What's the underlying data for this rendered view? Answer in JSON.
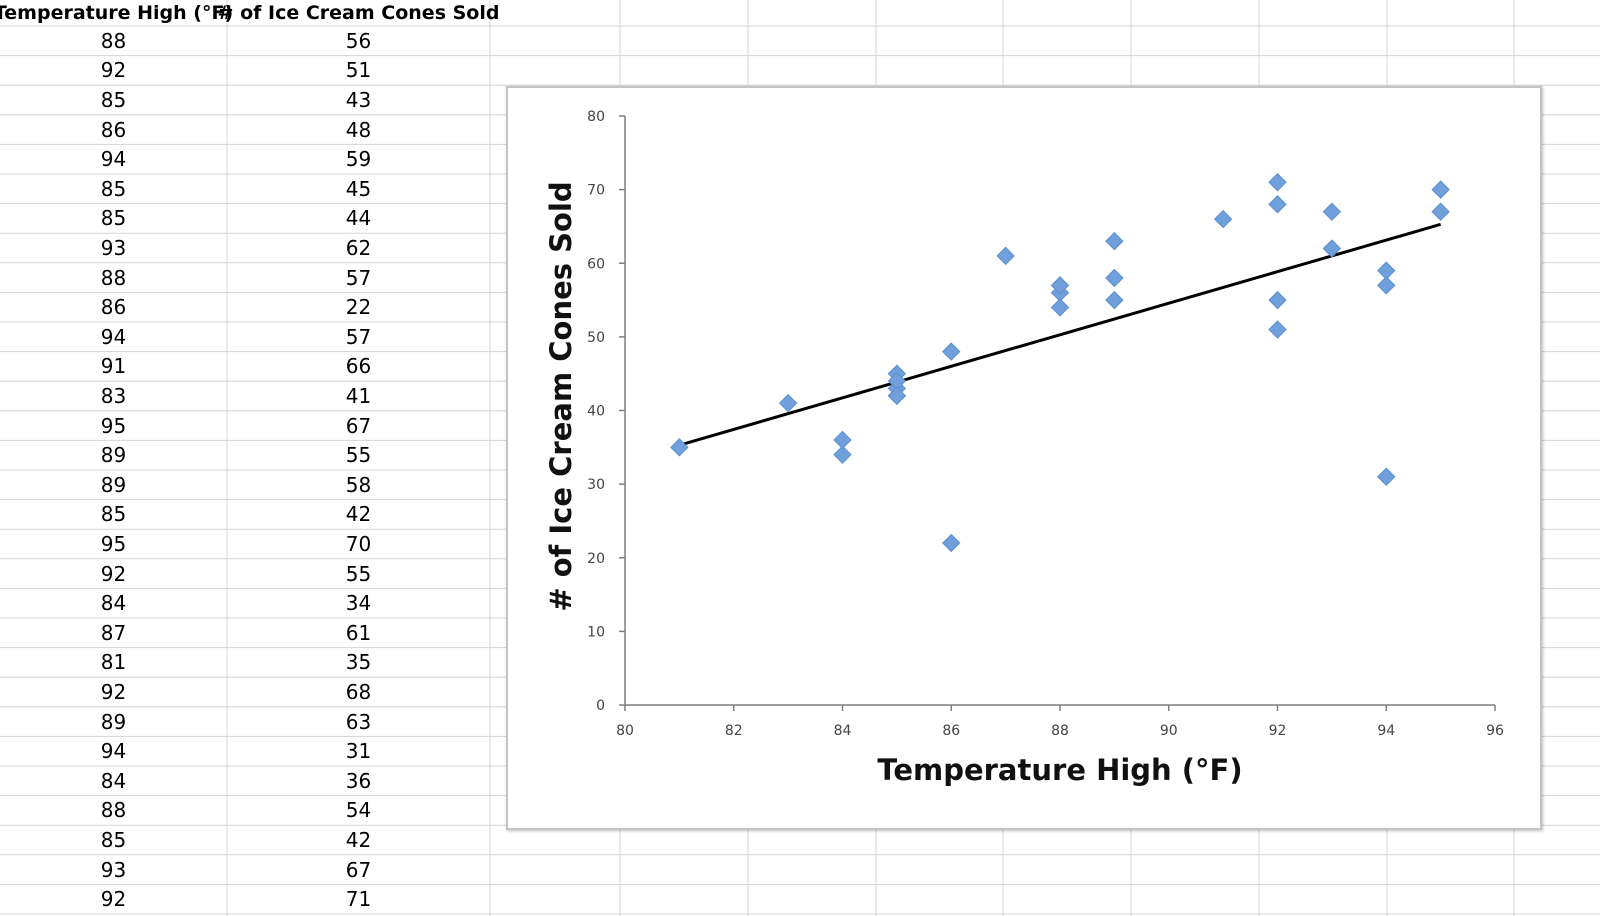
{
  "sheet": {
    "headers": [
      "Temperature High (°F)",
      "# of Ice Cream Cones Sold"
    ],
    "rows": [
      [
        "88",
        "56"
      ],
      [
        "92",
        "51"
      ],
      [
        "85",
        "43"
      ],
      [
        "86",
        "48"
      ],
      [
        "94",
        "59"
      ],
      [
        "85",
        "45"
      ],
      [
        "85",
        "44"
      ],
      [
        "93",
        "62"
      ],
      [
        "88",
        "57"
      ],
      [
        "86",
        "22"
      ],
      [
        "94",
        "57"
      ],
      [
        "91",
        "66"
      ],
      [
        "83",
        "41"
      ],
      [
        "95",
        "67"
      ],
      [
        "89",
        "55"
      ],
      [
        "89",
        "58"
      ],
      [
        "85",
        "42"
      ],
      [
        "95",
        "70"
      ],
      [
        "92",
        "55"
      ],
      [
        "84",
        "34"
      ],
      [
        "87",
        "61"
      ],
      [
        "81",
        "35"
      ],
      [
        "92",
        "68"
      ],
      [
        "89",
        "63"
      ],
      [
        "94",
        "31"
      ],
      [
        "84",
        "36"
      ],
      [
        "88",
        "54"
      ],
      [
        "85",
        "42"
      ],
      [
        "93",
        "67"
      ],
      [
        "92",
        "71"
      ]
    ]
  },
  "chart_data": {
    "type": "scatter",
    "xlabel": "Temperature High (°F)",
    "ylabel": "# of Ice Cream Cones Sold",
    "xlim": [
      80,
      96
    ],
    "ylim": [
      0,
      80
    ],
    "x_ticks": [
      80,
      82,
      84,
      86,
      88,
      90,
      92,
      94,
      96
    ],
    "y_ticks": [
      0,
      10,
      20,
      30,
      40,
      50,
      60,
      70,
      80
    ],
    "grid": false,
    "legend": "none",
    "marker": "diamond",
    "marker_color": "#6fa0dc",
    "trendline": {
      "type": "linear",
      "color": "#000000",
      "x_range": [
        81,
        95
      ]
    },
    "series": [
      {
        "points": [
          [
            88,
            56
          ],
          [
            92,
            51
          ],
          [
            85,
            43
          ],
          [
            86,
            48
          ],
          [
            94,
            59
          ],
          [
            85,
            45
          ],
          [
            85,
            44
          ],
          [
            93,
            62
          ],
          [
            88,
            57
          ],
          [
            86,
            22
          ],
          [
            94,
            57
          ],
          [
            91,
            66
          ],
          [
            83,
            41
          ],
          [
            95,
            67
          ],
          [
            89,
            55
          ],
          [
            89,
            58
          ],
          [
            85,
            42
          ],
          [
            95,
            70
          ],
          [
            92,
            55
          ],
          [
            84,
            34
          ],
          [
            87,
            61
          ],
          [
            81,
            35
          ],
          [
            92,
            68
          ],
          [
            89,
            63
          ],
          [
            94,
            31
          ],
          [
            84,
            36
          ],
          [
            88,
            54
          ],
          [
            85,
            42
          ],
          [
            93,
            67
          ],
          [
            92,
            71
          ]
        ]
      }
    ]
  }
}
